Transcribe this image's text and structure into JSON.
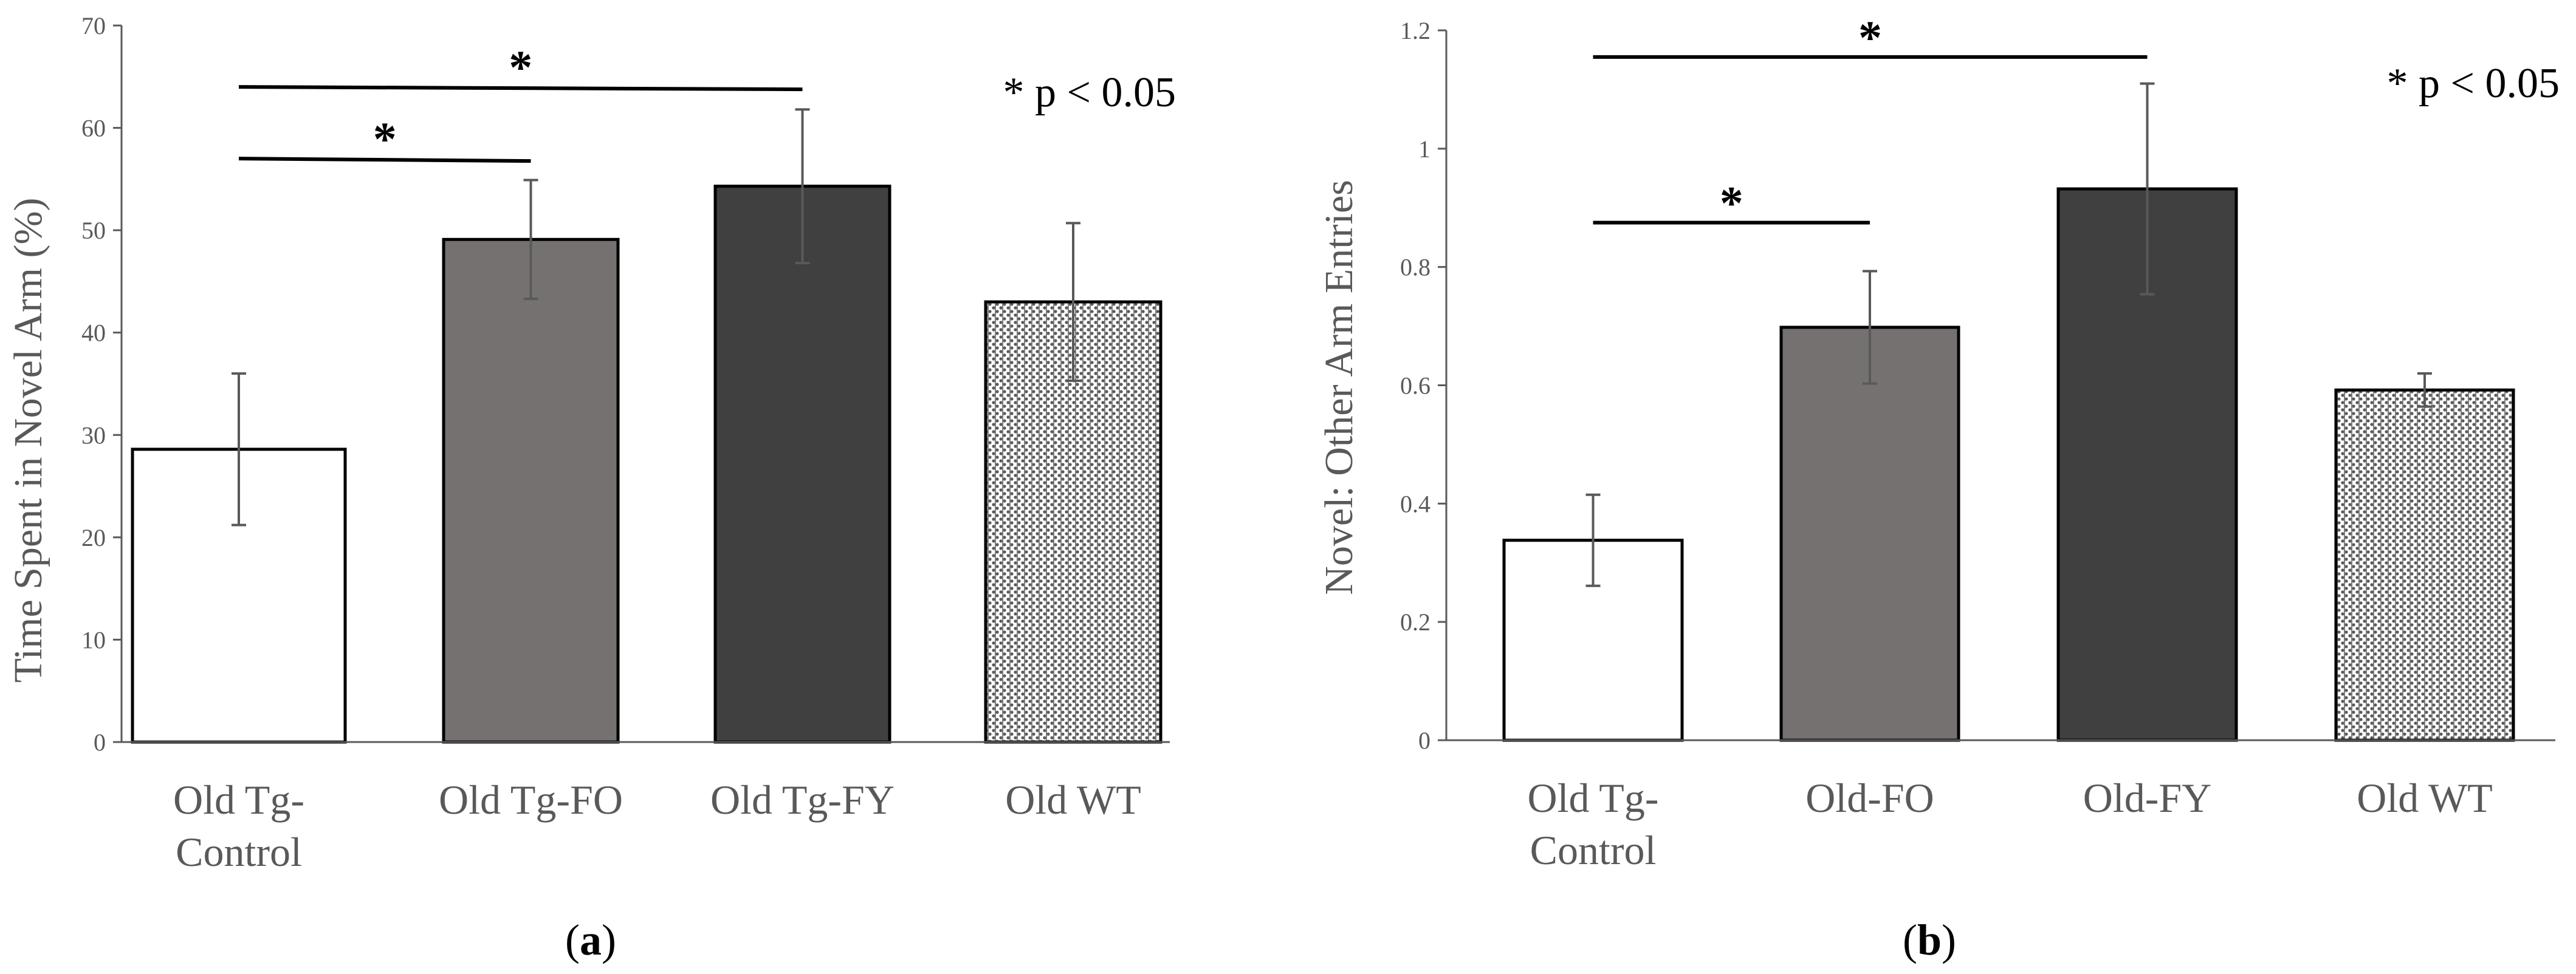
{
  "chart_data": [
    {
      "type": "bar",
      "panel_label": "a",
      "ylabel": "Time Spent in Novel Arm (%)",
      "ylim": [
        0,
        70
      ],
      "yticks": [
        "0",
        "10",
        "20",
        "30",
        "40",
        "50",
        "60",
        "70"
      ],
      "categories": [
        [
          "Old Tg-",
          "Control"
        ],
        [
          "Old Tg-FO"
        ],
        [
          "Old Tg-FY"
        ],
        [
          "Old WT"
        ]
      ],
      "values": [
        28.6,
        49.1,
        54.3,
        43.0
      ],
      "errors": [
        7.4,
        5.8,
        7.5,
        7.7
      ],
      "fills": [
        "#ffffff",
        "#767171",
        "#404040",
        "pattern"
      ],
      "significance": [
        {
          "from": 0,
          "to": 1,
          "y": 57.0,
          "label": "*"
        },
        {
          "from": 0,
          "to": 2,
          "y": 64.0,
          "label": "*"
        }
      ],
      "note": "* p < 0.05"
    },
    {
      "type": "bar",
      "panel_label": "b",
      "ylabel": "Novel: Other Arm Entries",
      "ylim": [
        0,
        1.2
      ],
      "yticks": [
        "0",
        "0.2",
        "0.4",
        "0.6",
        "0.8",
        "1",
        "1.2"
      ],
      "categories": [
        [
          "Old Tg-",
          "Control"
        ],
        [
          "Old-FO"
        ],
        [
          "Old-FY"
        ],
        [
          "Old WT"
        ]
      ],
      "values": [
        0.338,
        0.698,
        0.932,
        0.592
      ],
      "errors": [
        0.077,
        0.095,
        0.178,
        0.028
      ],
      "fills": [
        "#ffffff",
        "#767171",
        "#404040",
        "pattern"
      ],
      "significance": [
        {
          "from": 0,
          "to": 1,
          "y": 0.875,
          "label": "*"
        },
        {
          "from": 0,
          "to": 2,
          "y": 1.155,
          "label": "*"
        }
      ],
      "note": "* p < 0.05"
    }
  ]
}
